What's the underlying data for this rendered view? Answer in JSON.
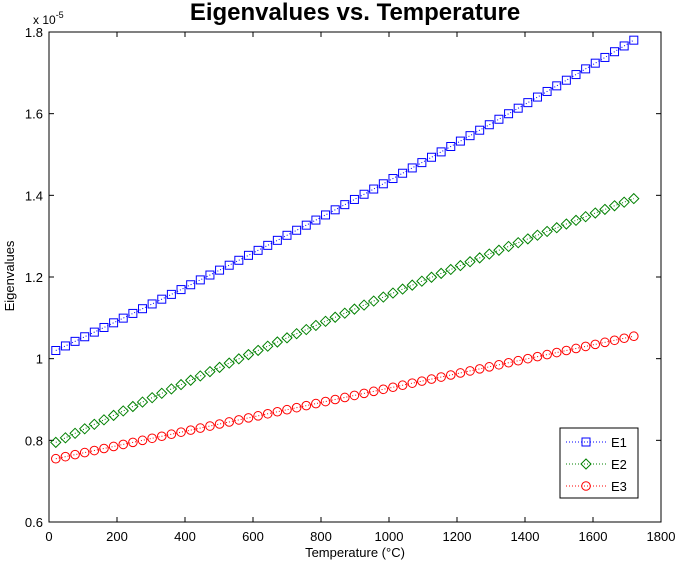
{
  "chart_data": {
    "type": "line",
    "title": "Eigenvalues vs. Temperature",
    "xlabel": "Temperature (°C)",
    "ylabel": "Eigenvalues",
    "exponent_label_base": "x 10",
    "exponent_label_power": "-5",
    "xlim": [
      0,
      1800
    ],
    "ylim": [
      0.6,
      1.8
    ],
    "xticks": [
      0,
      200,
      400,
      600,
      800,
      1000,
      1200,
      1400,
      1600,
      1800
    ],
    "yticks": [
      0.6,
      0.8,
      1.0,
      1.2,
      1.4,
      1.6,
      1.8
    ],
    "xtick_labels": [
      "0",
      "200",
      "400",
      "600",
      "800",
      "1000",
      "1200",
      "1400",
      "1600",
      "1800"
    ],
    "ytick_labels": [
      "0.6",
      "0.8",
      "1",
      "1.2",
      "1.4",
      "1.6",
      "1.8"
    ],
    "grid": false,
    "legend_position": "bottom-right",
    "x": {
      "start": 20,
      "stop": 1720,
      "count": 61
    },
    "series": [
      {
        "name": "E1",
        "marker": "square",
        "color": "#0000ff",
        "line_style": "dotted",
        "y_start": 1.02,
        "y_end": 1.78,
        "curvature": 0.12
      },
      {
        "name": "E2",
        "marker": "diamond",
        "color": "#008000",
        "line_style": "dotted",
        "y_start": 0.795,
        "y_end": 1.392,
        "curvature": -0.12
      },
      {
        "name": "E3",
        "marker": "circle",
        "color": "#ff0000",
        "line_style": "dotted",
        "y_start": 0.755,
        "y_end": 1.055,
        "curvature": 0.0
      }
    ]
  }
}
